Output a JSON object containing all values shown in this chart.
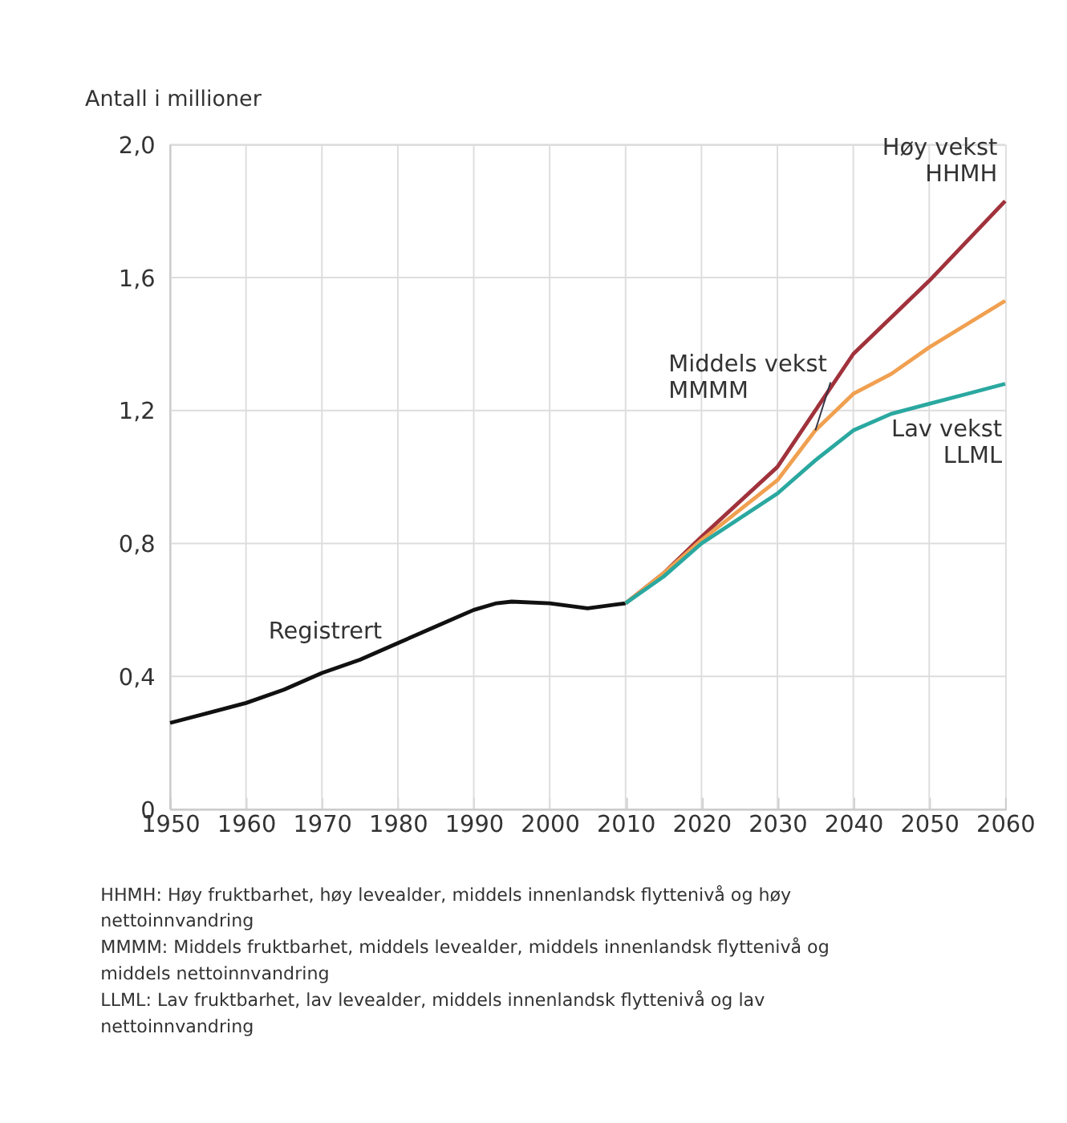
{
  "chart_data": {
    "type": "line",
    "ylabel": "Antall i millioner",
    "xlim": [
      1950,
      2060
    ],
    "ylim": [
      0,
      2.0
    ],
    "xticks": [
      1950,
      1960,
      1970,
      1980,
      1990,
      2000,
      2010,
      2020,
      2030,
      2040,
      2050,
      2060
    ],
    "yticks": [
      0,
      {
        "value": 0.4,
        "label": "0,4"
      },
      {
        "value": 0.8,
        "label": "0,8"
      },
      {
        "value": 1.2,
        "label": "1,2"
      },
      {
        "value": 1.6,
        "label": "1,6"
      },
      {
        "value": 2.0,
        "label": "2,0"
      }
    ],
    "grid": true,
    "marker": "none",
    "line_style": "solid",
    "series": [
      {
        "name": "Registrert",
        "color": "#111111",
        "x": [
          1950,
          1955,
          1960,
          1965,
          1970,
          1975,
          1980,
          1985,
          1990,
          1993,
          1995,
          2000,
          2005,
          2010
        ],
        "values": [
          0.26,
          0.29,
          0.32,
          0.36,
          0.41,
          0.45,
          0.5,
          0.55,
          0.6,
          0.62,
          0.625,
          0.62,
          0.605,
          0.62
        ]
      },
      {
        "name": "Høy vekst\nHHMH",
        "color": "#a0323c",
        "x": [
          2010,
          2015,
          2020,
          2030,
          2035,
          2040,
          2050,
          2060
        ],
        "values": [
          0.62,
          0.71,
          0.82,
          1.03,
          1.2,
          1.37,
          1.59,
          1.83
        ]
      },
      {
        "name": "Middels vekst\nMMMM",
        "color": "#f0a050",
        "x": [
          2010,
          2015,
          2020,
          2030,
          2035,
          2040,
          2045,
          2050,
          2060
        ],
        "values": [
          0.62,
          0.71,
          0.81,
          0.99,
          1.14,
          1.25,
          1.31,
          1.39,
          1.53
        ]
      },
      {
        "name": "Lav vekst\nLLML",
        "color": "#2aa8a0",
        "x": [
          2010,
          2015,
          2020,
          2030,
          2035,
          2040,
          2045,
          2050,
          2055,
          2060
        ],
        "values": [
          0.62,
          0.7,
          0.8,
          0.95,
          1.05,
          1.14,
          1.19,
          1.22,
          1.25,
          1.28
        ]
      }
    ],
    "annotations": [
      "HHMH: Høy fruktbarhet, høy levealder, middels innenlandsk flyttenivå og høy nettoinnvandring",
      "MMMM: Middels fruktbarhet, middels levealder, middels innenlandsk flyttenivå og middels nettoinnvandring",
      "LLML: Lav fruktbarhet, lav levealder, middels innenlandsk flyttenivå og lav nettoinnvandring"
    ]
  }
}
